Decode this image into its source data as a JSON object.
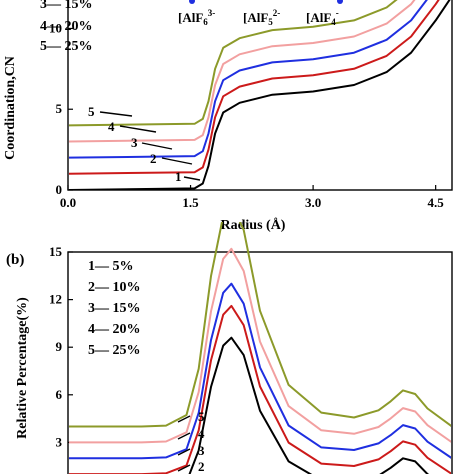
{
  "colors": {
    "black": "#000000",
    "red": "#cc1a1a",
    "blue": "#1f2fe0",
    "pink": "#f2a0a0",
    "olive": "#8c9a2a"
  },
  "chart_data": [
    {
      "type": "line",
      "xlabel": "Radius (Å)",
      "ylabel": "Coordination,CN",
      "xlim": [
        0,
        4.7
      ],
      "ylim": [
        0,
        13
      ],
      "xticks": [
        "0.0",
        "1.5",
        "3.0",
        "4.5"
      ],
      "yticks": [
        "0",
        "5",
        "10"
      ],
      "legend": [
        "3— 15%",
        "4— 20%",
        "5— 25%"
      ],
      "species": [
        "[AlF6]3-",
        "[AlF5]2-",
        "[AlF4]-"
      ],
      "curve_labels": [
        "1",
        "2",
        "3",
        "4",
        "5"
      ],
      "series": [
        {
          "name": "1",
          "offset": 0,
          "x": [
            0,
            1.55,
            1.65,
            1.72,
            1.8,
            1.9,
            2.1,
            2.5,
            3.0,
            3.5,
            3.9,
            4.2,
            4.5,
            4.7
          ],
          "y": [
            0,
            0.1,
            0.4,
            1.5,
            3.5,
            4.8,
            5.4,
            5.9,
            6.1,
            6.5,
            7.3,
            8.5,
            10.5,
            12
          ]
        },
        {
          "name": "2",
          "offset": 1,
          "x": [
            0,
            1.55,
            1.65,
            1.72,
            1.8,
            1.9,
            2.1,
            2.5,
            3.0,
            3.5,
            3.9,
            4.2,
            4.5,
            4.7
          ],
          "y": [
            0,
            0.1,
            0.4,
            1.5,
            3.5,
            4.8,
            5.4,
            5.9,
            6.1,
            6.5,
            7.3,
            8.5,
            10.5,
            12
          ]
        },
        {
          "name": "3",
          "offset": 2,
          "x": [
            0,
            1.55,
            1.65,
            1.72,
            1.8,
            1.9,
            2.1,
            2.5,
            3.0,
            3.5,
            3.9,
            4.2,
            4.5,
            4.7
          ],
          "y": [
            0,
            0.1,
            0.4,
            1.5,
            3.5,
            4.8,
            5.4,
            5.9,
            6.1,
            6.5,
            7.3,
            8.5,
            10.5,
            12
          ]
        },
        {
          "name": "4",
          "offset": 3,
          "x": [
            0,
            1.55,
            1.65,
            1.72,
            1.8,
            1.9,
            2.1,
            2.5,
            3.0,
            3.5,
            3.9,
            4.2,
            4.5,
            4.7
          ],
          "y": [
            0,
            0.1,
            0.4,
            1.5,
            3.5,
            4.8,
            5.4,
            5.9,
            6.1,
            6.5,
            7.3,
            8.5,
            10.5,
            12
          ]
        },
        {
          "name": "5",
          "offset": 4,
          "x": [
            0,
            1.55,
            1.65,
            1.72,
            1.8,
            1.9,
            2.1,
            2.5,
            3.0,
            3.5,
            3.9,
            4.2,
            4.5,
            4.7
          ],
          "y": [
            0,
            0.1,
            0.4,
            1.5,
            3.5,
            4.8,
            5.4,
            5.9,
            6.1,
            6.5,
            7.3,
            8.5,
            10.5,
            12
          ]
        }
      ]
    },
    {
      "type": "line",
      "panel": "(b)",
      "ylabel": "Relative Percentage(%)",
      "xlim": [
        0,
        4.7
      ],
      "ylim": [
        0,
        15
      ],
      "yticks": [
        "3",
        "6",
        "9",
        "12",
        "15"
      ],
      "legend": [
        "1— 5%",
        "2— 10%",
        "3— 15%",
        "4— 20%",
        "5— 25%"
      ],
      "curve_labels": [
        "2",
        "3",
        "4",
        "5"
      ],
      "series": [
        {
          "name": "1",
          "offset": 0,
          "peak": 9.6,
          "x": [
            0,
            0.9,
            1.2,
            1.45,
            1.6,
            1.75,
            1.9,
            2.0,
            2.15,
            2.35,
            2.7,
            3.1,
            3.5,
            3.8,
            3.95,
            4.1,
            4.25,
            4.4,
            4.7
          ],
          "y": [
            0,
            0,
            0.05,
            0.5,
            2.5,
            6.5,
            9.1,
            9.6,
            8.5,
            5.0,
            1.8,
            0.6,
            0.5,
            0.9,
            1.4,
            2.0,
            1.8,
            1.0,
            0
          ]
        },
        {
          "name": "2",
          "offset": 1,
          "peak": 10.6,
          "x": [
            0,
            0.9,
            1.2,
            1.45,
            1.6,
            1.75,
            1.9,
            2.0,
            2.15,
            2.35,
            2.7,
            3.1,
            3.5,
            3.8,
            3.95,
            4.1,
            4.25,
            4.4,
            4.7
          ],
          "y": [
            0,
            0,
            0.05,
            0.5,
            2.5,
            6.5,
            9.1,
            9.6,
            8.5,
            5.0,
            1.8,
            0.6,
            0.5,
            0.9,
            1.4,
            2.0,
            1.8,
            1.0,
            0
          ]
        },
        {
          "name": "3",
          "offset": 2,
          "peak": 11.0,
          "x": [
            0,
            0.9,
            1.2,
            1.45,
            1.6,
            1.75,
            1.9,
            2.0,
            2.15,
            2.35,
            2.7,
            3.1,
            3.5,
            3.8,
            3.95,
            4.1,
            4.25,
            4.4,
            4.7
          ],
          "y": [
            0,
            0,
            0.05,
            0.5,
            2.5,
            6.5,
            9.1,
            9.6,
            8.5,
            5.0,
            1.8,
            0.6,
            0.5,
            0.9,
            1.4,
            2.0,
            1.8,
            1.0,
            0
          ]
        },
        {
          "name": "4",
          "offset": 3,
          "peak": 12.2,
          "x": [
            0,
            0.9,
            1.2,
            1.45,
            1.6,
            1.75,
            1.9,
            2.0,
            2.15,
            2.35,
            2.7,
            3.1,
            3.5,
            3.8,
            3.95,
            4.1,
            4.25,
            4.4,
            4.7
          ],
          "y": [
            0,
            0,
            0.05,
            0.5,
            2.5,
            6.5,
            9.1,
            9.6,
            8.5,
            5.0,
            1.8,
            0.6,
            0.5,
            0.9,
            1.4,
            2.0,
            1.8,
            1.0,
            0
          ]
        },
        {
          "name": "5",
          "offset": 4,
          "peak": 14.0,
          "x": [
            0,
            0.9,
            1.2,
            1.45,
            1.6,
            1.75,
            1.9,
            2.0,
            2.15,
            2.35,
            2.7,
            3.1,
            3.5,
            3.8,
            3.95,
            4.1,
            4.25,
            4.4,
            4.7
          ],
          "y": [
            0,
            0,
            0.05,
            0.5,
            2.5,
            6.5,
            9.1,
            9.6,
            8.5,
            5.0,
            1.8,
            0.6,
            0.5,
            0.9,
            1.4,
            2.0,
            1.8,
            1.0,
            0
          ]
        }
      ]
    }
  ]
}
